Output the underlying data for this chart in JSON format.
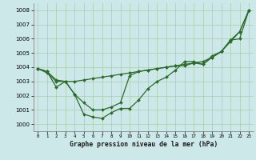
{
  "xlabel": "Graphe pression niveau de la mer (hPa)",
  "background_color": "#cce8e8",
  "grid_color": "#aaccaa",
  "line_color": "#2d6a2d",
  "x_ticks": [
    0,
    1,
    2,
    3,
    4,
    5,
    6,
    7,
    8,
    9,
    10,
    11,
    12,
    13,
    14,
    15,
    16,
    17,
    18,
    19,
    20,
    21,
    22,
    23
  ],
  "ylim": [
    999.5,
    1008.5
  ],
  "yticks": [
    1000,
    1001,
    1002,
    1003,
    1004,
    1005,
    1006,
    1007,
    1008
  ],
  "line1_y": [
    1003.9,
    1003.7,
    1002.6,
    1003.0,
    1002.1,
    1000.7,
    1000.5,
    1000.4,
    1000.8,
    1001.1,
    1001.1,
    1001.7,
    1002.5,
    1003.0,
    1003.3,
    1003.8,
    1004.4,
    1004.4,
    1004.2,
    1004.7,
    1005.1,
    1005.8,
    1006.5,
    1008.0
  ],
  "line2_y": [
    1003.9,
    1003.6,
    1003.0,
    1003.0,
    1002.1,
    1001.5,
    1001.0,
    1001.0,
    1001.2,
    1001.5,
    1003.4,
    1003.7,
    1003.8,
    1003.9,
    1004.0,
    1004.1,
    1004.1,
    1004.3,
    1004.2,
    1004.8,
    1005.1,
    1005.9,
    1006.5,
    1008.0
  ],
  "line3_y": [
    1003.9,
    1003.7,
    1003.1,
    1003.0,
    1003.0,
    1003.1,
    1003.2,
    1003.3,
    1003.4,
    1003.5,
    1003.6,
    1003.7,
    1003.8,
    1003.9,
    1004.0,
    1004.1,
    1004.2,
    1004.3,
    1004.4,
    1004.7,
    1005.1,
    1005.9,
    1006.0,
    1008.0
  ],
  "figsize": [
    3.2,
    2.0
  ],
  "dpi": 100
}
